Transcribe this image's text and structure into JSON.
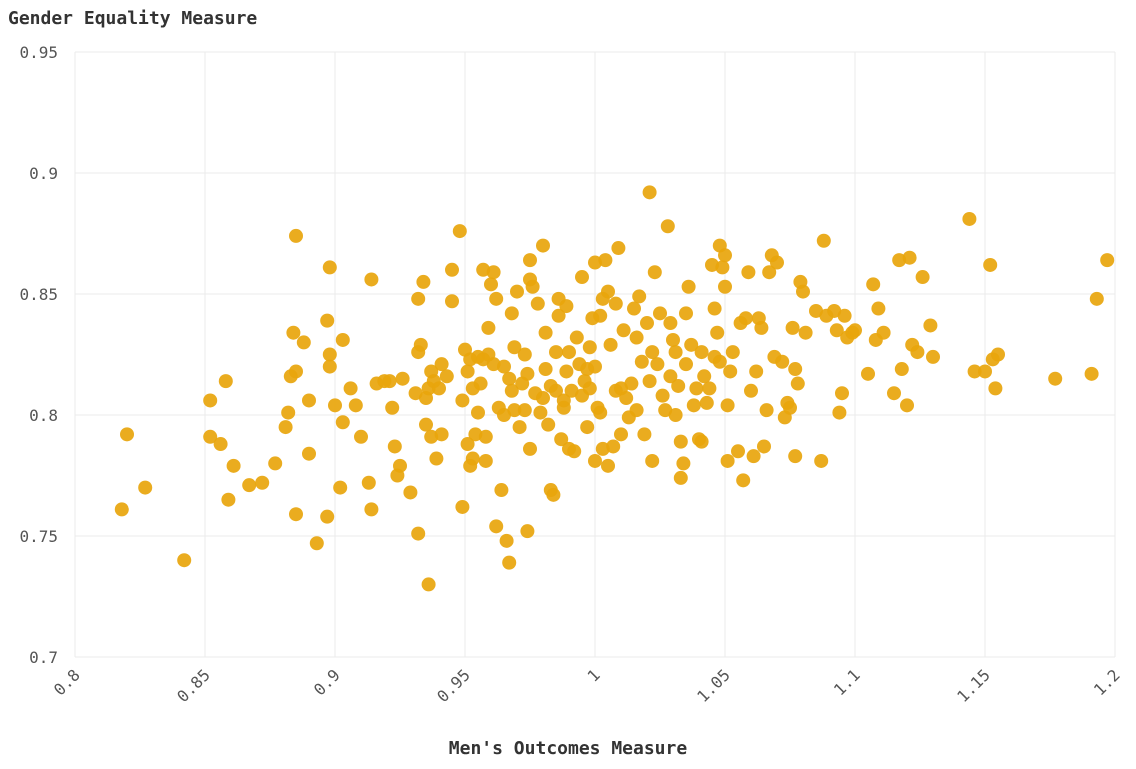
{
  "chart_data": {
    "type": "scatter",
    "title": "",
    "xlabel": "Men's Outcomes Measure",
    "ylabel": "Gender Equality Measure",
    "xlim": [
      0.8,
      1.2
    ],
    "ylim": [
      0.7,
      0.95
    ],
    "xticks": [
      "0.8",
      "0.85",
      "0.9",
      "0.95",
      "1",
      "1.05",
      "1.1",
      "1.15",
      "1.2"
    ],
    "yticks": [
      "0.7",
      "0.75",
      "0.8",
      "0.85",
      "0.9",
      "0.95"
    ],
    "grid": true,
    "point_color": "#e8a50c",
    "series": [
      {
        "points": [
          [
            0.818,
            0.761
          ],
          [
            0.82,
            0.792
          ],
          [
            0.827,
            0.77
          ],
          [
            0.842,
            0.74
          ],
          [
            0.852,
            0.806
          ],
          [
            0.852,
            0.791
          ],
          [
            0.856,
            0.788
          ],
          [
            0.858,
            0.814
          ],
          [
            0.859,
            0.765
          ],
          [
            0.861,
            0.779
          ],
          [
            0.867,
            0.771
          ],
          [
            0.872,
            0.772
          ],
          [
            0.877,
            0.78
          ],
          [
            0.881,
            0.795
          ],
          [
            0.882,
            0.801
          ],
          [
            0.883,
            0.816
          ],
          [
            0.884,
            0.834
          ],
          [
            0.885,
            0.874
          ],
          [
            0.885,
            0.818
          ],
          [
            0.885,
            0.759
          ],
          [
            0.888,
            0.83
          ],
          [
            0.89,
            0.784
          ],
          [
            0.89,
            0.806
          ],
          [
            0.893,
            0.747
          ],
          [
            0.897,
            0.758
          ],
          [
            0.897,
            0.839
          ],
          [
            0.898,
            0.861
          ],
          [
            0.898,
            0.825
          ],
          [
            0.898,
            0.82
          ],
          [
            0.9,
            0.804
          ],
          [
            0.902,
            0.77
          ],
          [
            0.903,
            0.797
          ],
          [
            0.903,
            0.831
          ],
          [
            0.906,
            0.811
          ],
          [
            0.908,
            0.804
          ],
          [
            0.91,
            0.791
          ],
          [
            0.913,
            0.772
          ],
          [
            0.914,
            0.856
          ],
          [
            0.914,
            0.761
          ],
          [
            0.916,
            0.813
          ],
          [
            0.919,
            0.814
          ],
          [
            0.921,
            0.814
          ],
          [
            0.922,
            0.803
          ],
          [
            0.923,
            0.787
          ],
          [
            0.924,
            0.775
          ],
          [
            0.925,
            0.779
          ],
          [
            0.926,
            0.815
          ],
          [
            0.929,
            0.768
          ],
          [
            0.931,
            0.809
          ],
          [
            0.932,
            0.826
          ],
          [
            0.932,
            0.848
          ],
          [
            0.932,
            0.751
          ],
          [
            0.933,
            0.829
          ],
          [
            0.934,
            0.855
          ],
          [
            0.935,
            0.796
          ],
          [
            0.935,
            0.807
          ],
          [
            0.936,
            0.73
          ],
          [
            0.936,
            0.811
          ],
          [
            0.937,
            0.818
          ],
          [
            0.937,
            0.791
          ],
          [
            0.938,
            0.814
          ],
          [
            0.939,
            0.782
          ],
          [
            0.94,
            0.811
          ],
          [
            0.941,
            0.792
          ],
          [
            0.941,
            0.821
          ],
          [
            0.943,
            0.816
          ],
          [
            0.945,
            0.86
          ],
          [
            0.945,
            0.847
          ],
          [
            0.948,
            0.876
          ],
          [
            0.949,
            0.762
          ],
          [
            0.949,
            0.806
          ],
          [
            0.95,
            0.827
          ],
          [
            0.951,
            0.818
          ],
          [
            0.951,
            0.788
          ],
          [
            0.952,
            0.823
          ],
          [
            0.952,
            0.779
          ],
          [
            0.953,
            0.811
          ],
          [
            0.953,
            0.782
          ],
          [
            0.954,
            0.792
          ],
          [
            0.955,
            0.824
          ],
          [
            0.955,
            0.801
          ],
          [
            0.956,
            0.813
          ],
          [
            0.957,
            0.86
          ],
          [
            0.957,
            0.823
          ],
          [
            0.958,
            0.791
          ],
          [
            0.958,
            0.781
          ],
          [
            0.959,
            0.836
          ],
          [
            0.959,
            0.825
          ],
          [
            0.96,
            0.854
          ],
          [
            0.961,
            0.859
          ],
          [
            0.961,
            0.821
          ],
          [
            0.962,
            0.848
          ],
          [
            0.962,
            0.754
          ],
          [
            0.963,
            0.803
          ],
          [
            0.964,
            0.769
          ],
          [
            0.965,
            0.8
          ],
          [
            0.965,
            0.82
          ],
          [
            0.966,
            0.748
          ],
          [
            0.967,
            0.815
          ],
          [
            0.967,
            0.739
          ],
          [
            0.968,
            0.81
          ],
          [
            0.968,
            0.842
          ],
          [
            0.969,
            0.802
          ],
          [
            0.969,
            0.828
          ],
          [
            0.97,
            0.851
          ],
          [
            0.971,
            0.795
          ],
          [
            0.972,
            0.813
          ],
          [
            0.973,
            0.802
          ],
          [
            0.973,
            0.825
          ],
          [
            0.974,
            0.817
          ],
          [
            0.974,
            0.752
          ],
          [
            0.975,
            0.786
          ],
          [
            0.975,
            0.864
          ],
          [
            0.975,
            0.856
          ],
          [
            0.976,
            0.853
          ],
          [
            0.977,
            0.809
          ],
          [
            0.978,
            0.846
          ],
          [
            0.979,
            0.801
          ],
          [
            0.98,
            0.87
          ],
          [
            0.98,
            0.807
          ],
          [
            0.981,
            0.834
          ],
          [
            0.981,
            0.819
          ],
          [
            0.982,
            0.796
          ],
          [
            0.983,
            0.769
          ],
          [
            0.983,
            0.812
          ],
          [
            0.984,
            0.767
          ],
          [
            0.985,
            0.81
          ],
          [
            0.985,
            0.826
          ],
          [
            0.986,
            0.841
          ],
          [
            0.986,
            0.848
          ],
          [
            0.987,
            0.79
          ],
          [
            0.988,
            0.806
          ],
          [
            0.988,
            0.803
          ],
          [
            0.989,
            0.845
          ],
          [
            0.989,
            0.818
          ],
          [
            0.99,
            0.786
          ],
          [
            0.99,
            0.826
          ],
          [
            0.991,
            0.81
          ],
          [
            0.992,
            0.785
          ],
          [
            0.993,
            0.832
          ],
          [
            0.994,
            0.821
          ],
          [
            0.995,
            0.857
          ],
          [
            0.995,
            0.808
          ],
          [
            0.996,
            0.814
          ],
          [
            0.997,
            0.819
          ],
          [
            0.997,
            0.795
          ],
          [
            0.998,
            0.828
          ],
          [
            0.998,
            0.811
          ],
          [
            0.999,
            0.84
          ],
          [
            1.0,
            0.863
          ],
          [
            1.0,
            0.82
          ],
          [
            1.0,
            0.781
          ],
          [
            1.001,
            0.803
          ],
          [
            1.002,
            0.841
          ],
          [
            1.002,
            0.801
          ],
          [
            1.003,
            0.848
          ],
          [
            1.003,
            0.786
          ],
          [
            1.004,
            0.864
          ],
          [
            1.005,
            0.851
          ],
          [
            1.005,
            0.779
          ],
          [
            1.006,
            0.829
          ],
          [
            1.007,
            0.787
          ],
          [
            1.008,
            0.846
          ],
          [
            1.008,
            0.81
          ],
          [
            1.009,
            0.869
          ],
          [
            1.01,
            0.792
          ],
          [
            1.01,
            0.811
          ],
          [
            1.011,
            0.835
          ],
          [
            1.012,
            0.807
          ],
          [
            1.013,
            0.799
          ],
          [
            1.014,
            0.813
          ],
          [
            1.015,
            0.844
          ],
          [
            1.016,
            0.832
          ],
          [
            1.016,
            0.802
          ],
          [
            1.017,
            0.849
          ],
          [
            1.018,
            0.822
          ],
          [
            1.019,
            0.792
          ],
          [
            1.02,
            0.838
          ],
          [
            1.021,
            0.892
          ],
          [
            1.021,
            0.814
          ],
          [
            1.022,
            0.826
          ],
          [
            1.022,
            0.781
          ],
          [
            1.023,
            0.859
          ],
          [
            1.024,
            0.821
          ],
          [
            1.025,
            0.842
          ],
          [
            1.026,
            0.808
          ],
          [
            1.027,
            0.802
          ],
          [
            1.028,
            0.878
          ],
          [
            1.029,
            0.838
          ],
          [
            1.029,
            0.816
          ],
          [
            1.03,
            0.831
          ],
          [
            1.031,
            0.8
          ],
          [
            1.031,
            0.826
          ],
          [
            1.032,
            0.812
          ],
          [
            1.033,
            0.774
          ],
          [
            1.033,
            0.789
          ],
          [
            1.034,
            0.78
          ],
          [
            1.035,
            0.842
          ],
          [
            1.035,
            0.821
          ],
          [
            1.036,
            0.853
          ],
          [
            1.037,
            0.829
          ],
          [
            1.038,
            0.804
          ],
          [
            1.039,
            0.811
          ],
          [
            1.04,
            0.79
          ],
          [
            1.041,
            0.826
          ],
          [
            1.041,
            0.789
          ],
          [
            1.042,
            0.816
          ],
          [
            1.043,
            0.805
          ],
          [
            1.044,
            0.811
          ],
          [
            1.045,
            0.862
          ],
          [
            1.046,
            0.844
          ],
          [
            1.046,
            0.824
          ],
          [
            1.047,
            0.834
          ],
          [
            1.048,
            0.87
          ],
          [
            1.048,
            0.822
          ],
          [
            1.049,
            0.861
          ],
          [
            1.05,
            0.853
          ],
          [
            1.05,
            0.866
          ],
          [
            1.051,
            0.781
          ],
          [
            1.051,
            0.804
          ],
          [
            1.052,
            0.818
          ],
          [
            1.053,
            0.826
          ],
          [
            1.055,
            0.785
          ],
          [
            1.056,
            0.838
          ],
          [
            1.057,
            0.773
          ],
          [
            1.058,
            0.84
          ],
          [
            1.059,
            0.859
          ],
          [
            1.06,
            0.81
          ],
          [
            1.061,
            0.783
          ],
          [
            1.062,
            0.818
          ],
          [
            1.063,
            0.84
          ],
          [
            1.064,
            0.836
          ],
          [
            1.065,
            0.787
          ],
          [
            1.066,
            0.802
          ],
          [
            1.067,
            0.859
          ],
          [
            1.068,
            0.866
          ],
          [
            1.069,
            0.824
          ],
          [
            1.07,
            0.863
          ],
          [
            1.072,
            0.822
          ],
          [
            1.073,
            0.799
          ],
          [
            1.074,
            0.805
          ],
          [
            1.075,
            0.803
          ],
          [
            1.076,
            0.836
          ],
          [
            1.077,
            0.783
          ],
          [
            1.077,
            0.819
          ],
          [
            1.078,
            0.813
          ],
          [
            1.079,
            0.855
          ],
          [
            1.08,
            0.851
          ],
          [
            1.081,
            0.834
          ],
          [
            1.085,
            0.843
          ],
          [
            1.087,
            0.781
          ],
          [
            1.088,
            0.872
          ],
          [
            1.089,
            0.841
          ],
          [
            1.092,
            0.843
          ],
          [
            1.093,
            0.835
          ],
          [
            1.094,
            0.801
          ],
          [
            1.095,
            0.809
          ],
          [
            1.096,
            0.841
          ],
          [
            1.097,
            0.832
          ],
          [
            1.099,
            0.834
          ],
          [
            1.1,
            0.835
          ],
          [
            1.105,
            0.817
          ],
          [
            1.107,
            0.854
          ],
          [
            1.108,
            0.831
          ],
          [
            1.109,
            0.844
          ],
          [
            1.111,
            0.834
          ],
          [
            1.115,
            0.809
          ],
          [
            1.117,
            0.864
          ],
          [
            1.118,
            0.819
          ],
          [
            1.12,
            0.804
          ],
          [
            1.121,
            0.865
          ],
          [
            1.122,
            0.829
          ],
          [
            1.124,
            0.826
          ],
          [
            1.126,
            0.857
          ],
          [
            1.129,
            0.837
          ],
          [
            1.13,
            0.824
          ],
          [
            1.144,
            0.881
          ],
          [
            1.146,
            0.818
          ],
          [
            1.15,
            0.818
          ],
          [
            1.152,
            0.862
          ],
          [
            1.153,
            0.823
          ],
          [
            1.154,
            0.811
          ],
          [
            1.155,
            0.825
          ],
          [
            1.177,
            0.815
          ],
          [
            1.191,
            0.817
          ],
          [
            1.193,
            0.848
          ],
          [
            1.197,
            0.864
          ]
        ]
      }
    ]
  }
}
